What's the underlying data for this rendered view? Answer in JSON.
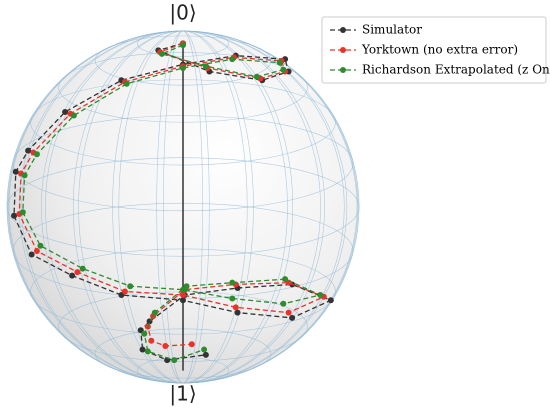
{
  "chart_data": {
    "type": "bloch",
    "top_label": "|0⟩",
    "bottom_label": "|1⟩",
    "xlim": [
      -1,
      1
    ],
    "ylim": [
      -1,
      1
    ],
    "legend": "upper right",
    "series": [
      {
        "name": "Simulator",
        "color": "#333333",
        "x": [
          0,
          -0.14,
          0.15,
          0.45,
          0.6,
          0.58,
          0.3,
          0,
          -0.35,
          -0.67,
          -0.88,
          -0.95,
          -0.96,
          -0.86,
          -0.63,
          -0.35,
          0,
          0.31,
          0.62,
          0.84,
          0.62,
          0.31,
          0.01,
          -0.19,
          -0.24,
          -0.23,
          -0.09,
          0.13
        ],
        "values": [
          0.93,
          0.89,
          0.77,
          0.72,
          0.77,
          0.84,
          0.86,
          0.81,
          0.72,
          0.54,
          0.32,
          0.2,
          -0.05,
          -0.27,
          -0.39,
          -0.5,
          -0.53,
          -0.6,
          -0.63,
          -0.53,
          -0.44,
          -0.46,
          -0.5,
          -0.65,
          -0.7,
          -0.81,
          -0.87,
          -0.84
        ]
      },
      {
        "name": "Yorktown (no extra error)",
        "color": "#e8332a",
        "x": [
          0,
          -0.13,
          0.14,
          0.44,
          0.58,
          0.56,
          0.29,
          0,
          -0.33,
          -0.64,
          -0.85,
          -0.92,
          -0.93,
          -0.83,
          -0.6,
          -0.33,
          0,
          0.3,
          0.6,
          0.8,
          0.6,
          0.3,
          0.01,
          -0.17,
          -0.2,
          -0.18,
          -0.1,
          0.05
        ],
        "values": [
          0.93,
          0.88,
          0.79,
          0.73,
          0.77,
          0.83,
          0.85,
          0.8,
          0.71,
          0.53,
          0.31,
          0.19,
          -0.04,
          -0.25,
          -0.37,
          -0.48,
          -0.5,
          -0.57,
          -0.6,
          -0.51,
          -0.43,
          -0.44,
          -0.47,
          -0.62,
          -0.68,
          -0.76,
          -0.79,
          -0.78
        ]
      },
      {
        "name": "Richardson Extrapolated (z Only)",
        "color": "#2e8b2e",
        "x": [
          0,
          -0.12,
          0.13,
          0.42,
          0.57,
          0.55,
          0.28,
          0,
          -0.32,
          -0.62,
          -0.83,
          -0.9,
          -0.91,
          -0.81,
          -0.57,
          -0.3,
          0,
          0.28,
          0.57,
          0.78,
          0.58,
          0.28,
          0.02,
          -0.16,
          -0.22,
          -0.2,
          -0.05,
          0.12
        ],
        "values": [
          0.92,
          0.87,
          0.8,
          0.74,
          0.78,
          0.82,
          0.84,
          0.79,
          0.7,
          0.52,
          0.3,
          0.18,
          -0.03,
          -0.22,
          -0.35,
          -0.45,
          -0.47,
          -0.52,
          -0.55,
          -0.5,
          -0.41,
          -0.43,
          -0.45,
          -0.6,
          -0.72,
          -0.82,
          -0.87,
          -0.81
        ]
      }
    ]
  }
}
